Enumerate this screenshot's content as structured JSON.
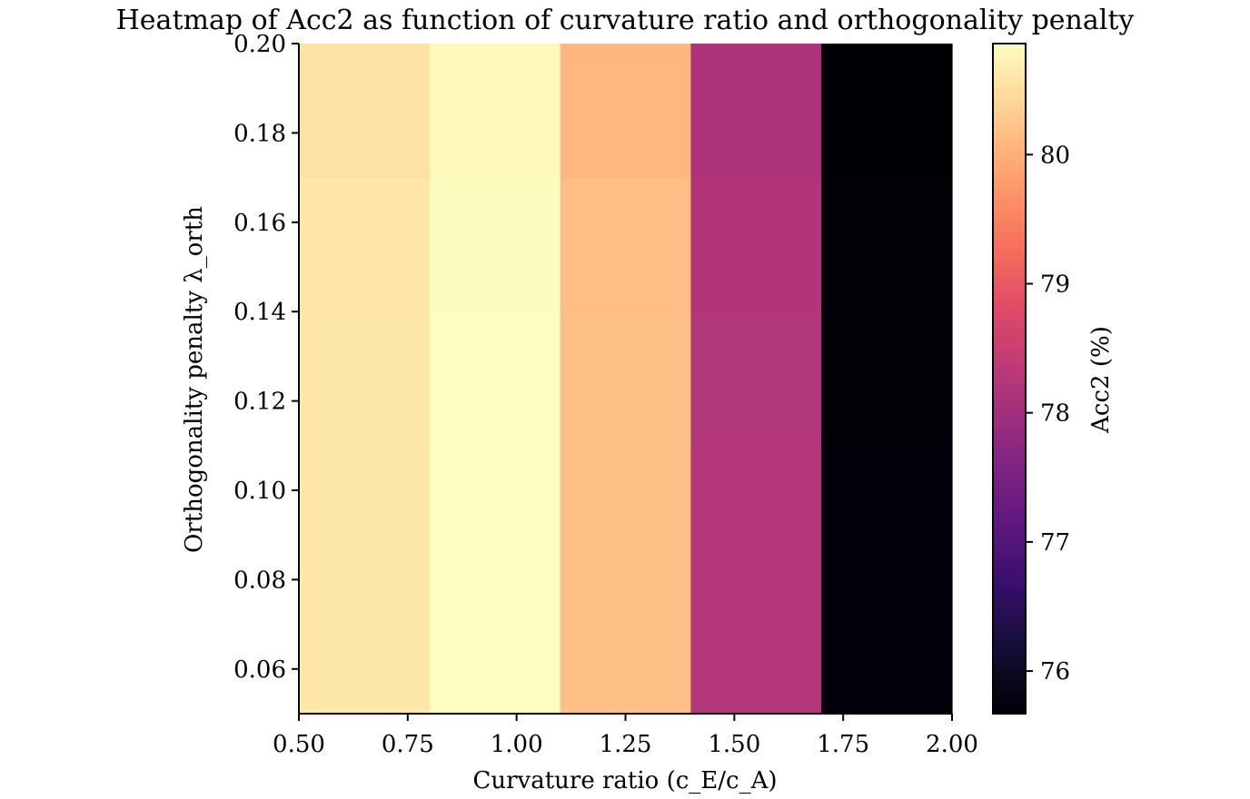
{
  "chart_data": {
    "type": "heatmap",
    "title": "Heatmap of Acc2 as function of curvature ratio and orthogonality penalty",
    "xlabel": "Curvature ratio (c_E/c_A)",
    "ylabel": "Orthogonality penalty λ_orth",
    "colorbar_label": "Acc2 (%)",
    "colormap": "magma",
    "x_edges": [
      0.5,
      0.8,
      1.1,
      1.4,
      1.7,
      2.0
    ],
    "y_edges": [
      0.05,
      0.08,
      0.11,
      0.14,
      0.17,
      0.2
    ],
    "x_centers": [
      0.65,
      0.95,
      1.25,
      1.55,
      1.85
    ],
    "y_centers": [
      0.065,
      0.095,
      0.125,
      0.155,
      0.185
    ],
    "values": [
      [
        80.62,
        80.86,
        80.18,
        78.22,
        75.72
      ],
      [
        80.62,
        80.86,
        80.18,
        78.22,
        75.72
      ],
      [
        80.61,
        80.86,
        80.17,
        78.21,
        75.71
      ],
      [
        80.6,
        80.85,
        80.16,
        78.2,
        75.7
      ],
      [
        80.56,
        80.81,
        80.08,
        78.15,
        75.67
      ]
    ],
    "vmin": 75.67,
    "vmax": 80.86,
    "xlim": [
      0.5,
      2.0
    ],
    "ylim": [
      0.05,
      0.2
    ],
    "x_ticks": [
      0.5,
      0.75,
      1.0,
      1.25,
      1.5,
      1.75,
      2.0
    ],
    "x_tick_labels": [
      "0.50",
      "0.75",
      "1.00",
      "1.25",
      "1.50",
      "1.75",
      "2.00"
    ],
    "y_ticks": [
      0.06,
      0.08,
      0.1,
      0.12,
      0.14,
      0.16,
      0.18,
      0.2
    ],
    "y_tick_labels": [
      "0.06",
      "0.08",
      "0.10",
      "0.12",
      "0.14",
      "0.16",
      "0.18",
      "0.20"
    ],
    "colorbar_ticks": [
      76,
      77,
      78,
      79,
      80
    ],
    "colorbar_tick_labels": [
      "76",
      "77",
      "78",
      "79",
      "80"
    ],
    "grid": false
  }
}
